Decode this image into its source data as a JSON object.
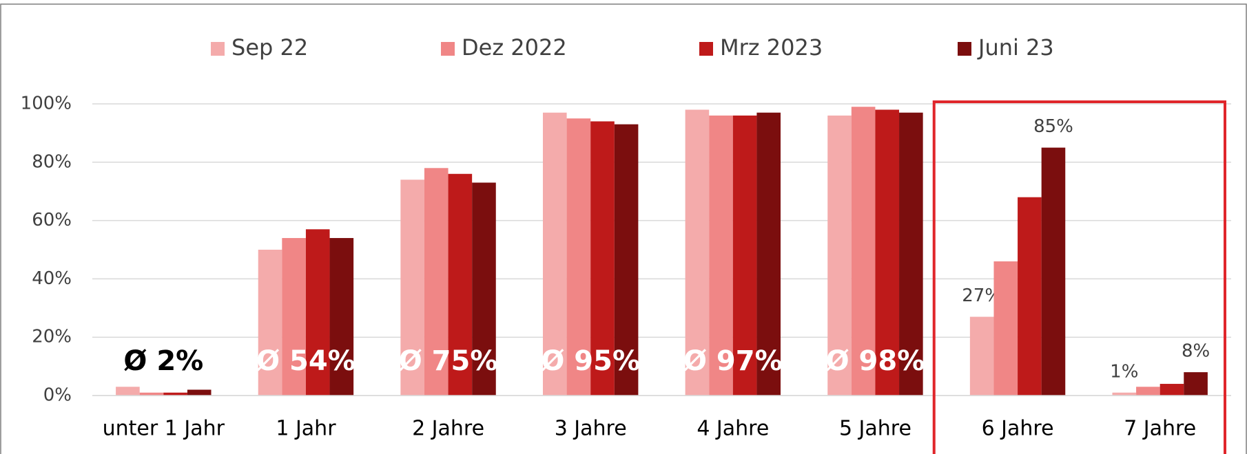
{
  "chart_data": {
    "type": "bar",
    "categories": [
      "unter 1 Jahr",
      "1 Jahr",
      "2 Jahre",
      "3 Jahre",
      "4 Jahre",
      "5 Jahre",
      "6 Jahre",
      "7 Jahre"
    ],
    "series": [
      {
        "name": "Sep 22",
        "color": "#f4abab",
        "values": [
          3,
          50,
          74,
          97,
          98,
          96,
          27,
          1
        ],
        "value_labels": [
          null,
          null,
          null,
          null,
          null,
          null,
          "27%",
          "1%"
        ]
      },
      {
        "name": "Dez 2022",
        "color": "#f08686",
        "values": [
          1,
          54,
          78,
          95,
          96,
          99,
          46,
          3
        ]
      },
      {
        "name": "Mrz 2023",
        "color": "#be1a1a",
        "values": [
          1,
          57,
          76,
          94,
          96,
          98,
          68,
          4
        ]
      },
      {
        "name": "Juni 23",
        "color": "#7b0e0e",
        "values": [
          2,
          54,
          73,
          93,
          97,
          97,
          85,
          8
        ],
        "value_labels": [
          null,
          null,
          null,
          null,
          null,
          null,
          "85%",
          "8%"
        ]
      }
    ],
    "annotations": [
      "Ø 2%",
      "Ø 54%",
      "Ø 75%",
      "Ø 95%",
      "Ø 97%",
      "Ø 98%"
    ],
    "ylim": [
      0,
      100
    ],
    "yticks": [
      {
        "value": 0,
        "label": "0%"
      },
      {
        "value": 20,
        "label": "20%"
      },
      {
        "value": 40,
        "label": "40%"
      },
      {
        "value": 60,
        "label": "60%"
      },
      {
        "value": 80,
        "label": "80%"
      },
      {
        "value": 100,
        "label": "100%"
      }
    ],
    "grid": true,
    "legend": "top"
  }
}
